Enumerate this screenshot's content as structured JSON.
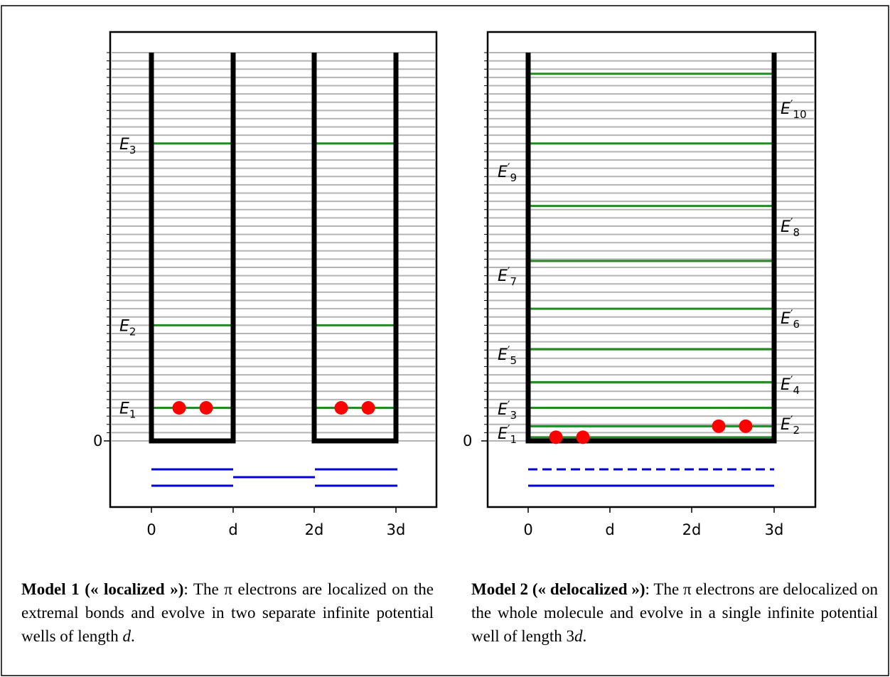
{
  "colors": {
    "well": "#000000",
    "level": "#228B22",
    "grid": "#b4b4b4",
    "electron": "#ff0000",
    "orbital": "#0000dd"
  },
  "panels": [
    {
      "id": "localized",
      "x_ticks": [
        "0",
        "d",
        "2d",
        "3d"
      ],
      "y_zero_label": "0",
      "level_labels": [
        {
          "base": "E",
          "sub": "1",
          "prime": false,
          "side": "left"
        },
        {
          "base": "E",
          "sub": "2",
          "prime": false,
          "side": "left"
        },
        {
          "base": "E",
          "sub": "3",
          "prime": false,
          "side": "left"
        }
      ]
    },
    {
      "id": "delocalized",
      "x_ticks": [
        "0",
        "d",
        "2d",
        "3d"
      ],
      "y_zero_label": "0",
      "level_labels": [
        {
          "base": "E",
          "sub": "1",
          "prime": true,
          "side": "left"
        },
        {
          "base": "E",
          "sub": "2",
          "prime": true,
          "side": "right"
        },
        {
          "base": "E",
          "sub": "3",
          "prime": true,
          "side": "left"
        },
        {
          "base": "E",
          "sub": "4",
          "prime": true,
          "side": "right"
        },
        {
          "base": "E",
          "sub": "5",
          "prime": true,
          "side": "left"
        },
        {
          "base": "E",
          "sub": "6",
          "prime": true,
          "side": "right"
        },
        {
          "base": "E",
          "sub": "7",
          "prime": true,
          "side": "left"
        },
        {
          "base": "E",
          "sub": "8",
          "prime": true,
          "side": "right"
        },
        {
          "base": "E",
          "sub": "9",
          "prime": true,
          "side": "left"
        },
        {
          "base": "E",
          "sub": "10",
          "prime": true,
          "side": "right"
        }
      ]
    }
  ],
  "captions": {
    "left": {
      "model": "Model 1",
      "tag": "(« localized »)",
      "text": ": The π electrons are localized on the extremal bonds and evolve in two separate infinite potential wells of length ",
      "var": "d",
      "end": "."
    },
    "right": {
      "model": "Model 2",
      "tag": "(« delocalized »)",
      "text": ": The π electrons are delocalized on the whole molecule and evolve in a single infinite potential well of length 3",
      "var": "d",
      "end": "."
    }
  }
}
